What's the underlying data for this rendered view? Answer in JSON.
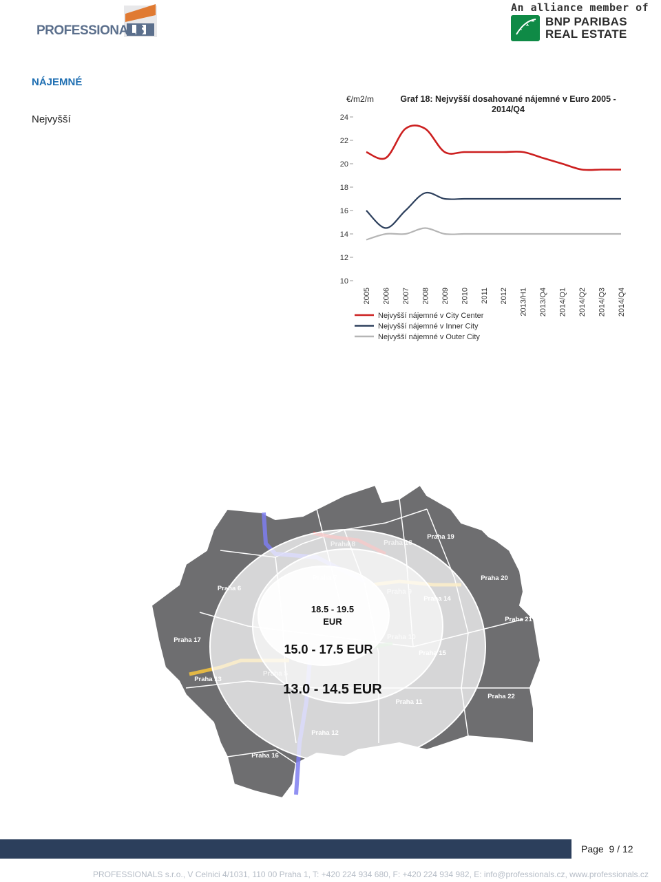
{
  "header": {
    "left_logo_text": "PROFESSIONALS",
    "right_logo_line1": "An alliance member of",
    "right_logo_line2": "BNP PARIBAS",
    "right_logo_line3": "REAL ESTATE"
  },
  "section": {
    "title": "NÁJEMNÉ",
    "subtitle": "Nejvyšší"
  },
  "colors": {
    "city_center": "#cc1f1f",
    "inner_city": "#2c3f5c",
    "outer_city": "#b5b5b5",
    "title_blue": "#1f6fb2",
    "footer_bar": "#2c3f5c"
  },
  "chart_data": {
    "type": "line",
    "title": "Graf 18: Nejvyšší dosahované nájemné v Euro 2005 - 2014/Q4",
    "title_lines": [
      "Graf 18: Nejvyšší dosahované nájemné v Euro 2005 -",
      "2014/Q4"
    ],
    "ylabel": "€/m2/m",
    "ylim": [
      10,
      24
    ],
    "yticks": [
      "24",
      "22",
      "20",
      "18",
      "16",
      "14",
      "12",
      "10"
    ],
    "categories": [
      "2005",
      "2006",
      "2007",
      "2008",
      "2009",
      "2010",
      "2011",
      "2012",
      "2013/H1",
      "2013/Q4",
      "2014/Q1",
      "2014/Q2",
      "2014/Q3",
      "2014/Q4"
    ],
    "series": [
      {
        "name": "Nejvyšší nájemné v City Center",
        "values": [
          21.0,
          20.5,
          23.0,
          23.0,
          21.0,
          21.0,
          21.0,
          21.0,
          21.0,
          20.5,
          20.0,
          19.5,
          19.5,
          19.5
        ]
      },
      {
        "name": "Nejvyšší nájemné v Inner City",
        "values": [
          16.0,
          14.5,
          16.0,
          17.5,
          17.0,
          17.0,
          17.0,
          17.0,
          17.0,
          17.0,
          17.0,
          17.0,
          17.0,
          17.0
        ]
      },
      {
        "name": "Nejvyšší nájemné v Outer City",
        "values": [
          13.5,
          14.0,
          14.0,
          14.5,
          14.0,
          14.0,
          14.0,
          14.0,
          14.0,
          14.0,
          14.0,
          14.0,
          14.0,
          14.0
        ]
      }
    ],
    "legend_position": "bottom-left",
    "grid": false
  },
  "map": {
    "districts": [
      "Praha 8",
      "Praha 18",
      "Praha 19",
      "Praha 6",
      "Praha 7",
      "Praha 9",
      "Praha 20",
      "Praha 14",
      "Praha 21",
      "Praha 17",
      "Praha 10",
      "Praha 15",
      "Praha 5",
      "Praha 13",
      "Praha 11",
      "Praha 22",
      "Praha 12",
      "Praha 16"
    ],
    "zone_center": "18.5 - 19.5\nEUR",
    "zone_inner": "15.0 - 17.5 EUR",
    "zone_outer": "13.0 - 14.5 EUR"
  },
  "footer": {
    "page_label": "Page",
    "page_number": "9 / 12",
    "company_line": "PROFESSIONALS s.r.o., V Celnici 4/1031, 110 00 Praha 1, T: +420 224 934 680, F: +420 224 934 982, E: info@professionals.cz, www.professionals.cz"
  }
}
